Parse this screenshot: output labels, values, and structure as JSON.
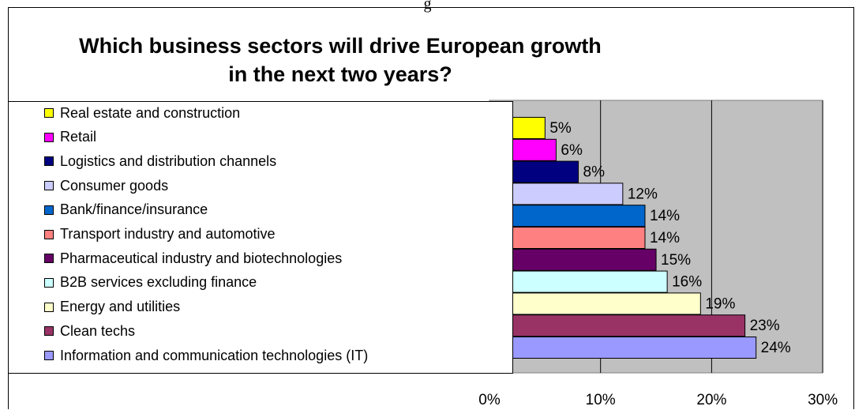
{
  "header_text": "g",
  "chart_data": {
    "type": "bar",
    "orientation": "horizontal",
    "title": "Which business sectors will drive European growth in the next two years?",
    "title_lines": [
      "Which business sectors will drive European growth",
      "in the next two years?"
    ],
    "categories": [
      "Real estate and construction",
      "Retail",
      "Logistics and distribution channels",
      "Consumer goods",
      "Bank/finance/insurance",
      "Transport industry and automotive",
      "Pharmaceutical industry and biotechnologies",
      "B2B services excluding finance",
      "Energy and utilities",
      "Clean techs",
      "Information and communication technologies (IT)"
    ],
    "values": [
      5,
      6,
      8,
      12,
      14,
      14,
      15,
      16,
      19,
      23,
      24
    ],
    "value_labels": [
      "5%",
      "6%",
      "8%",
      "12%",
      "14%",
      "14%",
      "15%",
      "16%",
      "19%",
      "23%",
      "24%"
    ],
    "colors": [
      "#ffff00",
      "#ff00ff",
      "#000080",
      "#ccccff",
      "#0066cc",
      "#ff8080",
      "#660066",
      "#ccffff",
      "#ffffcc",
      "#993366",
      "#9999ff"
    ],
    "xlim": [
      0,
      30
    ],
    "xticks": [
      0,
      10,
      20,
      30
    ],
    "xtick_labels": [
      "0%",
      "10%",
      "20%",
      "30%"
    ],
    "grid": true,
    "plot_background": "#c0c0c0",
    "legend_position": "left"
  }
}
